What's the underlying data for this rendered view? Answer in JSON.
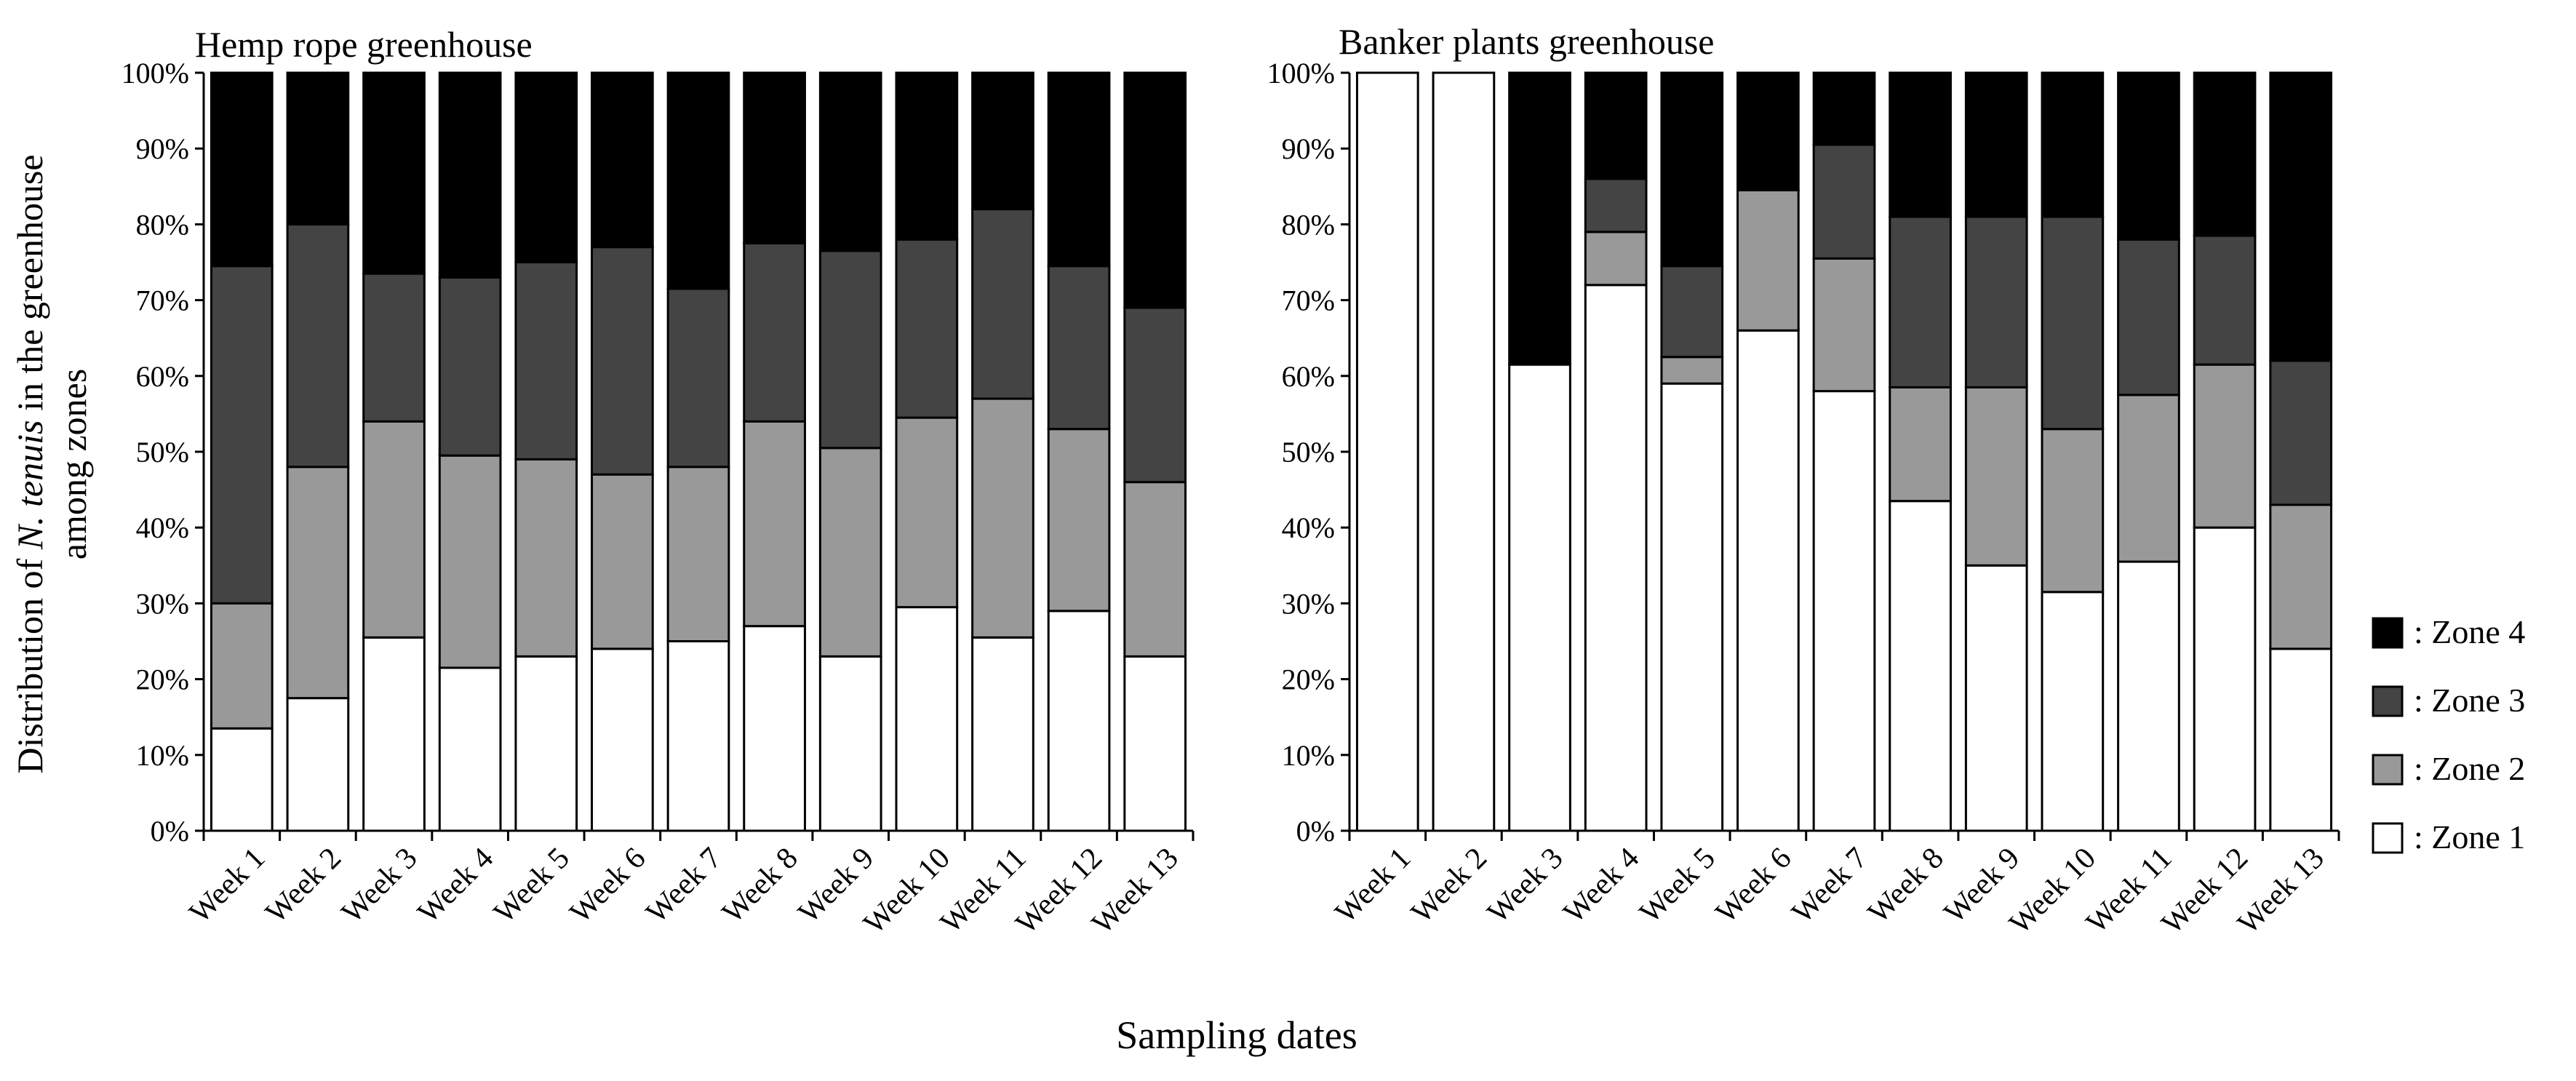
{
  "figure": {
    "ylabel_line1_prefix": "Distribution of ",
    "ylabel_line1_species": "N. tenuis",
    "ylabel_line1_suffix": " in the greenhouse",
    "ylabel_line2": "among zones",
    "xlabel": "Sampling  dates"
  },
  "legend": {
    "placement": "right",
    "items": [
      {
        "label": ": Zone 4",
        "color": "#000000"
      },
      {
        "label": ": Zone 3",
        "color": "#444444"
      },
      {
        "label": ": Zone 2",
        "color": "#999999"
      },
      {
        "label": ": Zone 1",
        "color": "#ffffff"
      }
    ]
  },
  "chart_data": [
    {
      "type": "bar",
      "stacked": true,
      "title": "Hemp rope greenhouse",
      "categories": [
        "Week 1",
        "Week 2",
        "Week 3",
        "Week 4",
        "Week 5",
        "Week 6",
        "Week 7",
        "Week 8",
        "Week 9",
        "Week 10",
        "Week 11",
        "Week 12",
        "Week 13"
      ],
      "yticks": [
        "0%",
        "10%",
        "20%",
        "30%",
        "40%",
        "50%",
        "60%",
        "70%",
        "80%",
        "90%",
        "100%"
      ],
      "ylim": [
        0,
        100
      ],
      "grid": false,
      "series": [
        {
          "name": "Zone 1",
          "color": "#ffffff",
          "values": [
            13.5,
            17.5,
            25.5,
            21.5,
            23,
            24,
            25,
            27,
            23,
            29.5,
            25.5,
            29,
            23
          ]
        },
        {
          "name": "Zone 2",
          "color": "#999999",
          "values": [
            16.5,
            30.5,
            28.5,
            28,
            26,
            23,
            23,
            27,
            27.5,
            25,
            31.5,
            24,
            23
          ]
        },
        {
          "name": "Zone 3",
          "color": "#444444",
          "values": [
            44.5,
            32,
            19.5,
            23.5,
            26,
            30,
            23.5,
            23.5,
            26,
            23.5,
            25,
            21.5,
            23
          ]
        },
        {
          "name": "Zone 4",
          "color": "#000000",
          "values": [
            25.5,
            20,
            26.5,
            27,
            25,
            23,
            28.5,
            22.5,
            23.5,
            22,
            18,
            25.5,
            31
          ]
        }
      ]
    },
    {
      "type": "bar",
      "stacked": true,
      "title": "Banker plants greenhouse",
      "categories": [
        "Week 1",
        "Week 2",
        "Week 3",
        "Week 4",
        "Week 5",
        "Week 6",
        "Week 7",
        "Week 8",
        "Week 9",
        "Week 10",
        "Week 11",
        "Week 12",
        "Week 13"
      ],
      "yticks": [
        "0%",
        "10%",
        "20%",
        "30%",
        "40%",
        "50%",
        "60%",
        "70%",
        "80%",
        "90%",
        "100%"
      ],
      "ylim": [
        0,
        100
      ],
      "grid": false,
      "series": [
        {
          "name": "Zone 1",
          "color": "#ffffff",
          "values": [
            100,
            100,
            61.5,
            72,
            59,
            66,
            58,
            43.5,
            35,
            31.5,
            35.5,
            40,
            24
          ]
        },
        {
          "name": "Zone 2",
          "color": "#999999",
          "values": [
            0,
            0,
            0,
            7,
            3.5,
            18.5,
            17.5,
            15,
            23.5,
            21.5,
            22,
            21.5,
            19
          ]
        },
        {
          "name": "Zone 3",
          "color": "#444444",
          "values": [
            0,
            0,
            0,
            7,
            12,
            0,
            15,
            22.5,
            22.5,
            28,
            20.5,
            17,
            19
          ]
        },
        {
          "name": "Zone 4",
          "color": "#000000",
          "values": [
            0,
            0,
            38.5,
            14,
            25.5,
            15.5,
            9.5,
            19,
            19,
            19,
            22,
            21.5,
            38
          ]
        }
      ]
    }
  ]
}
